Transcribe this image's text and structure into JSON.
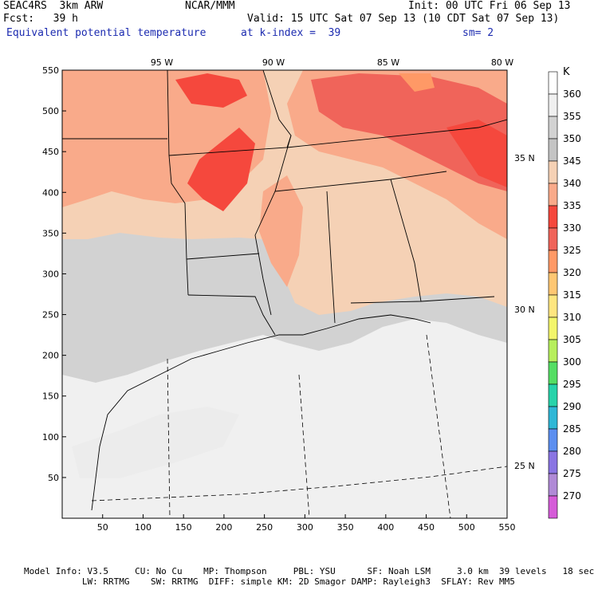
{
  "header": {
    "model": "SEAC4RS  3km ARW",
    "org": "NCAR/MMM",
    "init": "Init: 00 UTC Fri 06 Sep 13",
    "fcst": "Fcst:   39 h",
    "valid": "Valid: 15 UTC Sat 07 Sep 13 (10 CDT Sat 07 Sep 13)",
    "field": "Equivalent potential temperature",
    "level": "at k-index =  39",
    "smooth": "sm= 2"
  },
  "map": {
    "lon_labels": [
      "95 W",
      "90 W",
      "85 W",
      "80 W"
    ],
    "lat_labels": [
      "35 N",
      "30 N",
      "25 N"
    ],
    "x_ticks": [
      "50",
      "100",
      "150",
      "200",
      "250",
      "300",
      "350",
      "400",
      "450",
      "500",
      "550"
    ],
    "y_ticks": [
      "550",
      "500",
      "450",
      "400",
      "350",
      "300",
      "250",
      "200",
      "150",
      "100",
      "50"
    ],
    "grid": [
      0,
      550
    ]
  },
  "colorbar": {
    "unit": "K",
    "levels": [
      "360",
      "355",
      "350",
      "345",
      "340",
      "335",
      "330",
      "325",
      "320",
      "315",
      "310",
      "305",
      "300",
      "295",
      "290",
      "285",
      "280",
      "275",
      "270"
    ],
    "colors": [
      "#ffffff",
      "#f0f0f0",
      "#d2d2d2",
      "#c4c4c4",
      "#f5d1b5",
      "#f9aa8a",
      "#f5483d",
      "#f0645a",
      "#ff9966",
      "#ffc773",
      "#ffe680",
      "#f3f56b",
      "#b7ef5c",
      "#55de64",
      "#27d3aa",
      "#2fb7d6",
      "#5c8ff0",
      "#8a75e3",
      "#b08ad6",
      "#d55cd8"
    ]
  },
  "footer": {
    "line1": "Model Info: V3.5     CU: No Cu    MP: Thompson     PBL: YSU      SF: Noah LSM     3.0 km  39 levels   18 sec",
    "line2": "           LW: RRTMG    SW: RRTMG  DIFF: simple KM: 2D Smagor DAMP: Rayleigh3  SFLAY: Rev MM5"
  }
}
